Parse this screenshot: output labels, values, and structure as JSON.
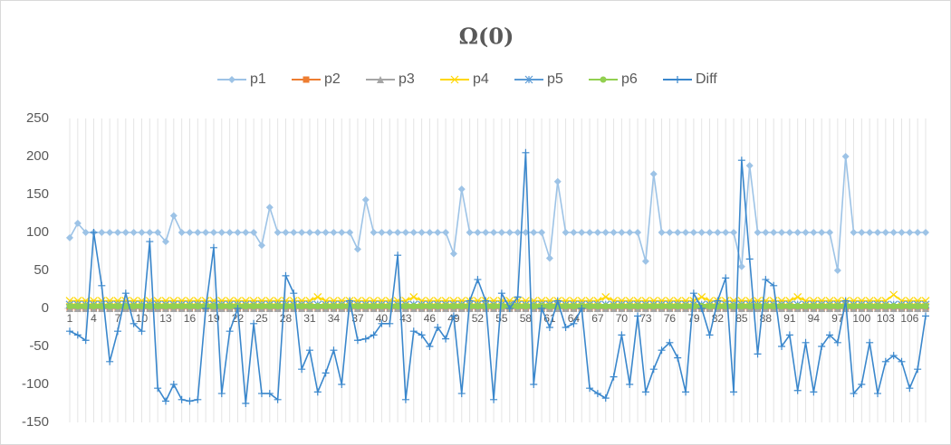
{
  "chart_data": {
    "type": "line",
    "title": "Ω(0)",
    "categories": [
      "1",
      null,
      null,
      "4",
      null,
      null,
      "7",
      null,
      null,
      "10",
      null,
      null,
      "13",
      null,
      null,
      "16",
      null,
      null,
      "19",
      null,
      null,
      "22",
      null,
      null,
      "25",
      null,
      null,
      "28",
      null,
      null,
      "31",
      null,
      null,
      "34",
      null,
      null,
      "37",
      null,
      null,
      "40",
      null,
      null,
      "43",
      null,
      null,
      "46",
      null,
      null,
      "49",
      null,
      null,
      "52",
      null,
      null,
      "55",
      null,
      null,
      "58",
      null,
      null,
      "61",
      null,
      null,
      "64",
      null,
      null,
      "67",
      null,
      null,
      "70",
      null,
      null,
      "73",
      null,
      null,
      "76",
      null,
      null,
      "79",
      null,
      null,
      "82",
      null,
      null,
      "85",
      null,
      null,
      "88",
      null,
      null,
      "91",
      null,
      null,
      "94",
      null,
      null,
      "97",
      null,
      null,
      "100",
      null,
      null,
      "103",
      null,
      null,
      "106",
      null,
      null
    ],
    "ylim": [
      -150,
      250
    ],
    "yticks": [
      -150,
      -100,
      -50,
      0,
      50,
      100,
      150,
      200,
      250
    ],
    "grid": "x",
    "legend": "top",
    "series": [
      {
        "name": "p1",
        "color": "#9dc3e6",
        "marker": "diamond",
        "values": [
          93,
          112,
          100,
          100,
          100,
          100,
          100,
          100,
          100,
          100,
          100,
          100,
          88,
          122,
          100,
          100,
          100,
          100,
          100,
          100,
          100,
          100,
          100,
          100,
          83,
          133,
          100,
          100,
          100,
          100,
          100,
          100,
          100,
          100,
          100,
          100,
          78,
          143,
          100,
          100,
          100,
          100,
          100,
          100,
          100,
          100,
          100,
          100,
          72,
          157,
          100,
          100,
          100,
          100,
          100,
          100,
          100,
          100,
          100,
          100,
          66,
          167,
          100,
          100,
          100,
          100,
          100,
          100,
          100,
          100,
          100,
          100,
          62,
          177,
          100,
          100,
          100,
          100,
          100,
          100,
          100,
          100,
          100,
          100,
          55,
          188,
          100,
          100,
          100,
          100,
          100,
          100,
          100,
          100,
          100,
          100,
          50,
          200,
          100,
          100,
          100,
          100,
          100,
          100,
          100,
          100,
          100,
          100
        ]
      },
      {
        "name": "p2",
        "color": "#ed7d31",
        "marker": "square",
        "values": [
          0,
          0,
          0,
          0,
          0,
          0,
          0,
          0,
          0,
          0,
          0,
          0,
          0,
          0,
          0,
          0,
          0,
          0,
          0,
          0,
          0,
          0,
          0,
          0,
          0,
          0,
          0,
          0,
          0,
          0,
          0,
          0,
          0,
          0,
          0,
          0,
          0,
          0,
          0,
          0,
          0,
          0,
          0,
          0,
          0,
          0,
          0,
          0,
          0,
          0,
          0,
          0,
          0,
          0,
          0,
          0,
          0,
          0,
          0,
          0,
          0,
          0,
          0,
          0,
          0,
          0,
          0,
          0,
          0,
          0,
          0,
          0,
          0,
          0,
          0,
          0,
          0,
          0,
          0,
          0,
          0,
          0,
          0,
          0,
          0,
          0,
          0,
          0,
          0,
          0,
          0,
          0,
          0,
          0,
          0,
          0,
          0,
          0,
          0,
          0,
          0,
          0,
          0,
          0,
          0,
          0,
          0,
          0
        ]
      },
      {
        "name": "p3",
        "color": "#a5a5a5",
        "marker": "triangle",
        "values": [
          0,
          0,
          0,
          0,
          0,
          0,
          0,
          0,
          0,
          0,
          0,
          0,
          0,
          0,
          0,
          0,
          0,
          0,
          0,
          0,
          0,
          0,
          0,
          0,
          0,
          0,
          0,
          0,
          0,
          0,
          0,
          0,
          0,
          0,
          0,
          0,
          0,
          0,
          0,
          0,
          0,
          0,
          0,
          0,
          0,
          0,
          0,
          0,
          0,
          0,
          0,
          0,
          0,
          0,
          0,
          0,
          0,
          0,
          0,
          0,
          0,
          0,
          0,
          0,
          0,
          0,
          0,
          0,
          0,
          0,
          0,
          0,
          0,
          0,
          0,
          0,
          0,
          0,
          0,
          0,
          0,
          0,
          0,
          0,
          0,
          0,
          0,
          0,
          0,
          0,
          0,
          0,
          0,
          0,
          0,
          0,
          0,
          0,
          0,
          0,
          0,
          0,
          0,
          0,
          0,
          0,
          0,
          0
        ]
      },
      {
        "name": "p4",
        "color": "#ffd700",
        "marker": "x",
        "values": [
          10,
          10,
          10,
          10,
          10,
          10,
          10,
          10,
          10,
          10,
          10,
          10,
          10,
          10,
          10,
          10,
          10,
          10,
          10,
          10,
          10,
          10,
          10,
          10,
          10,
          10,
          10,
          10,
          10,
          10,
          10,
          15,
          10,
          10,
          10,
          10,
          10,
          10,
          10,
          10,
          10,
          10,
          10,
          15,
          10,
          10,
          10,
          10,
          10,
          10,
          10,
          10,
          10,
          10,
          10,
          10,
          10,
          10,
          10,
          10,
          10,
          10,
          10,
          10,
          10,
          10,
          10,
          15,
          10,
          10,
          10,
          10,
          10,
          10,
          10,
          10,
          10,
          10,
          10,
          15,
          10,
          10,
          10,
          10,
          10,
          10,
          10,
          10,
          10,
          10,
          10,
          15,
          10,
          10,
          10,
          10,
          10,
          10,
          10,
          10,
          10,
          10,
          10,
          18,
          10,
          10,
          10,
          10
        ]
      },
      {
        "name": "p5",
        "color": "#5b9bd5",
        "marker": "asterisk",
        "values": [
          5,
          5,
          5,
          5,
          5,
          5,
          5,
          5,
          5,
          5,
          5,
          5,
          5,
          5,
          5,
          5,
          5,
          5,
          5,
          5,
          5,
          5,
          5,
          5,
          5,
          5,
          5,
          5,
          5,
          5,
          5,
          5,
          5,
          5,
          5,
          5,
          5,
          5,
          5,
          5,
          5,
          5,
          5,
          5,
          5,
          5,
          5,
          5,
          5,
          5,
          5,
          5,
          5,
          5,
          5,
          5,
          5,
          5,
          5,
          5,
          5,
          5,
          5,
          5,
          5,
          5,
          5,
          5,
          5,
          5,
          5,
          5,
          5,
          5,
          5,
          5,
          5,
          5,
          5,
          5,
          5,
          5,
          5,
          5,
          5,
          5,
          5,
          5,
          5,
          5,
          5,
          5,
          5,
          5,
          5,
          5,
          5,
          5,
          5,
          5,
          5,
          5,
          5,
          5,
          5,
          5,
          5,
          5
        ]
      },
      {
        "name": "p6",
        "color": "#92d050",
        "marker": "circle",
        "values": [
          3,
          3,
          3,
          3,
          3,
          3,
          3,
          3,
          3,
          3,
          3,
          3,
          3,
          3,
          3,
          3,
          3,
          3,
          3,
          3,
          3,
          3,
          3,
          3,
          3,
          3,
          3,
          3,
          3,
          3,
          3,
          3,
          3,
          3,
          3,
          3,
          3,
          3,
          3,
          3,
          3,
          3,
          3,
          3,
          3,
          3,
          3,
          3,
          3,
          3,
          3,
          3,
          3,
          3,
          3,
          3,
          3,
          3,
          3,
          3,
          3,
          3,
          3,
          3,
          3,
          3,
          3,
          3,
          3,
          3,
          3,
          3,
          3,
          3,
          3,
          3,
          3,
          3,
          3,
          3,
          3,
          3,
          3,
          3,
          3,
          3,
          3,
          3,
          3,
          3,
          3,
          3,
          3,
          3,
          3,
          3,
          3,
          3,
          3,
          3,
          3,
          3,
          3,
          3,
          3,
          3,
          3,
          3
        ]
      },
      {
        "name": "Diff",
        "color": "#3a87cc",
        "marker": "plus",
        "values": [
          -30,
          -35,
          -42,
          100,
          30,
          -70,
          -30,
          20,
          -20,
          -30,
          88,
          -105,
          -122,
          -100,
          -120,
          -122,
          -120,
          0,
          80,
          -112,
          -30,
          0,
          -125,
          -20,
          -112,
          -112,
          -120,
          43,
          20,
          -80,
          -55,
          -110,
          -85,
          -55,
          -100,
          10,
          -42,
          -40,
          -35,
          -20,
          -20,
          70,
          -120,
          -30,
          -35,
          -50,
          -25,
          -40,
          -10,
          -112,
          10,
          38,
          10,
          -120,
          20,
          0,
          15,
          205,
          -100,
          0,
          -25,
          10,
          -25,
          -20,
          0,
          -105,
          -112,
          -118,
          -90,
          -35,
          -100,
          -10,
          -110,
          -80,
          -55,
          -45,
          -65,
          -110,
          20,
          0,
          -35,
          10,
          40,
          -110,
          195,
          65,
          -60,
          38,
          30,
          -50,
          -35,
          -108,
          -45,
          -110,
          -50,
          -35,
          -45,
          10,
          -112,
          -100,
          -45,
          -112,
          -70,
          -62,
          -70,
          -105,
          -80,
          -10
        ]
      }
    ]
  }
}
